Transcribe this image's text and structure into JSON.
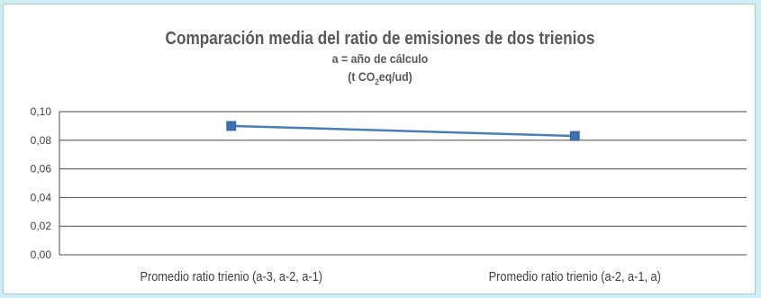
{
  "colors": {
    "background": "#cdeef3",
    "line": "#4a7ebb",
    "marker": "#3f6fb0",
    "grid": "#4d4d4d",
    "text": "#595959"
  },
  "chart_data": {
    "type": "line",
    "title": "Comparación media del ratio de emisiones de dos trienios",
    "subtitle": "a = año de cálculo",
    "unit_prefix": "(t CO",
    "unit_sub": "2",
    "unit_suffix": "eq/ud)",
    "categories": [
      "Promedio ratio trienio (a-3, a-2, a-1)",
      "Promedio ratio trienio (a-2, a-1, a)"
    ],
    "series": [
      {
        "values": [
          0.09,
          0.083
        ]
      }
    ],
    "ylim": [
      0,
      0.1
    ],
    "yticks": [
      "0,00",
      "0,02",
      "0,04",
      "0,06",
      "0,08",
      "0,10"
    ],
    "ytick_values": [
      0,
      0.02,
      0.04,
      0.06,
      0.08,
      0.1
    ],
    "grid": true,
    "legend": "none"
  }
}
